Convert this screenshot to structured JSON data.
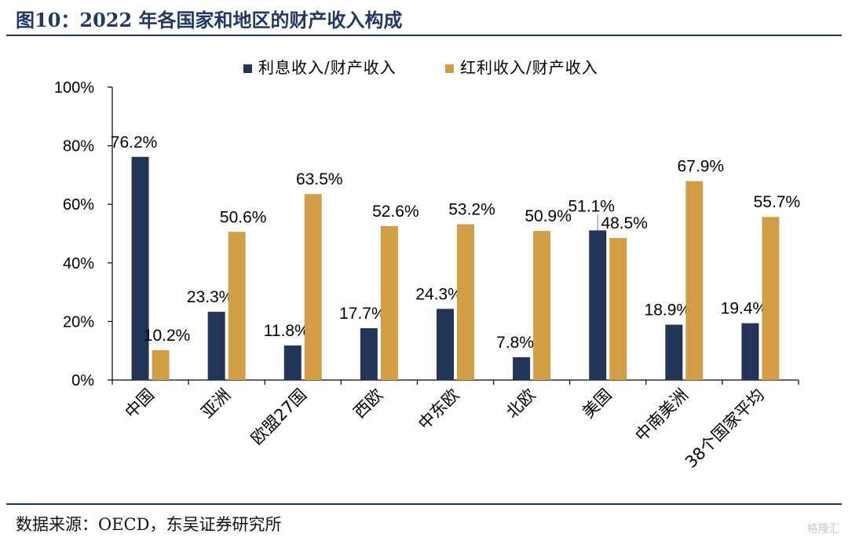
{
  "figure_title": "图10：2022 年各国家和地区的财产收入构成",
  "source": "数据来源：OECD，东吴证券研究所",
  "watermark": "格隆汇",
  "chart_data": {
    "type": "bar",
    "categories": [
      "中国",
      "亚洲",
      "欧盟27国",
      "西欧",
      "中东欧",
      "北欧",
      "美国",
      "中南美洲",
      "38个国家平均"
    ],
    "series": [
      {
        "name": "利息收入/财产收入",
        "color": "#223458",
        "values": [
          76.2,
          23.3,
          11.8,
          17.7,
          24.3,
          7.8,
          51.1,
          18.9,
          19.4
        ],
        "labels": [
          "76.2%",
          "23.3%",
          "11.8%",
          "17.7%",
          "24.3%",
          "7.8%",
          "51.1%",
          "18.9%",
          "19.4%"
        ]
      },
      {
        "name": "红利收入/财产收入",
        "color": "#d29e45",
        "values": [
          10.2,
          50.6,
          63.5,
          52.6,
          53.2,
          50.9,
          48.5,
          67.9,
          55.7
        ],
        "labels": [
          "10.2%",
          "50.6%",
          "63.5%",
          "52.6%",
          "53.2%",
          "50.9%",
          "48.5%",
          "67.9%",
          "55.7%"
        ]
      }
    ],
    "ylim": [
      0,
      100
    ],
    "yticks": [
      "0%",
      "20%",
      "40%",
      "60%",
      "80%",
      "100%"
    ],
    "legend_position": "top",
    "grid": false,
    "ylabel": "",
    "xlabel": ""
  }
}
